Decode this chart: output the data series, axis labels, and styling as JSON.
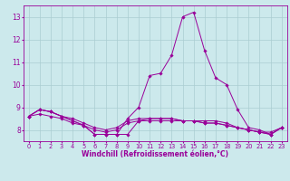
{
  "title": "",
  "xlabel": "Windchill (Refroidissement éolien,°C)",
  "ylabel": "",
  "xlim": [
    -0.5,
    23.5
  ],
  "ylim": [
    7.5,
    13.5
  ],
  "yticks": [
    8,
    9,
    10,
    11,
    12,
    13
  ],
  "xticks": [
    0,
    1,
    2,
    3,
    4,
    5,
    6,
    7,
    8,
    9,
    10,
    11,
    12,
    13,
    14,
    15,
    16,
    17,
    18,
    19,
    20,
    21,
    22,
    23
  ],
  "background_color": "#cce9ec",
  "line_color": "#990099",
  "grid_color": "#aacdd1",
  "series": [
    [
      8.6,
      8.9,
      8.8,
      8.6,
      8.4,
      8.2,
      7.8,
      7.8,
      7.8,
      7.8,
      8.4,
      8.5,
      8.5,
      8.5,
      8.4,
      8.4,
      8.3,
      8.3,
      8.2,
      8.1,
      8.0,
      7.9,
      7.8,
      8.1
    ],
    [
      8.6,
      8.9,
      8.8,
      8.6,
      8.4,
      8.2,
      7.8,
      7.8,
      7.8,
      8.5,
      9.0,
      10.4,
      10.5,
      11.3,
      13.0,
      13.2,
      11.5,
      10.3,
      10.0,
      8.9,
      8.1,
      8.0,
      7.8,
      8.1
    ],
    [
      8.6,
      8.9,
      8.8,
      8.6,
      8.5,
      8.3,
      8.1,
      8.0,
      8.1,
      8.4,
      8.5,
      8.5,
      8.5,
      8.5,
      8.4,
      8.4,
      8.4,
      8.4,
      8.3,
      8.1,
      8.0,
      7.9,
      7.9,
      8.1
    ],
    [
      8.6,
      8.7,
      8.6,
      8.5,
      8.3,
      8.2,
      8.0,
      7.9,
      8.0,
      8.3,
      8.4,
      8.4,
      8.4,
      8.4,
      8.4,
      8.4,
      8.3,
      8.3,
      8.2,
      8.1,
      8.0,
      7.9,
      7.8,
      8.1
    ]
  ],
  "xlabel_fontsize": 5.5,
  "xticklabel_fontsize": 4.8,
  "yticklabel_fontsize": 5.5,
  "linewidth": 0.7,
  "markersize": 1.8
}
